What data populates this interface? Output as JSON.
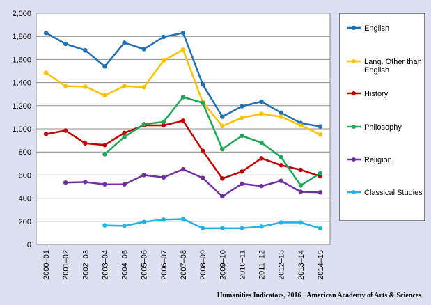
{
  "chart_data": {
    "type": "line",
    "categories": [
      "2000–01",
      "2001–02",
      "2002–03",
      "2003–04",
      "2004–05",
      "2005–06",
      "2006–07",
      "2007–08",
      "2008–09",
      "2009–10",
      "2010–11",
      "2011–12",
      "2012–13",
      "2013–14",
      "2014–15"
    ],
    "y_ticks": [
      "0",
      "200",
      "400",
      "600",
      "800",
      "1,000",
      "1,200",
      "1,400",
      "1,600",
      "1,800",
      "2,000"
    ],
    "ylim": [
      0,
      2000
    ],
    "grid": true,
    "legend_position": "right",
    "series": [
      {
        "name": "English",
        "color": "#1f6fb4",
        "values": [
          1830,
          1735,
          1680,
          1540,
          1745,
          1690,
          1795,
          1830,
          1385,
          1105,
          1195,
          1235,
          1140,
          1050,
          1020
        ]
      },
      {
        "name": "Lang. Other than English",
        "color": "#ffc000",
        "values": [
          1485,
          1370,
          1365,
          1290,
          1370,
          1360,
          1590,
          1685,
          1230,
          1025,
          1095,
          1130,
          1105,
          1030,
          950
        ]
      },
      {
        "name": "History",
        "color": "#c00000",
        "values": [
          955,
          985,
          875,
          860,
          965,
          1030,
          1030,
          1070,
          810,
          570,
          630,
          745,
          685,
          645,
          590
        ]
      },
      {
        "name": "Philosophy",
        "color": "#1da858",
        "values": [
          null,
          null,
          null,
          780,
          930,
          1040,
          1060,
          1275,
          1225,
          825,
          940,
          880,
          755,
          510,
          615
        ]
      },
      {
        "name": "Religion",
        "color": "#7030a0",
        "values": [
          null,
          535,
          540,
          520,
          520,
          600,
          580,
          650,
          575,
          415,
          525,
          505,
          550,
          455,
          450
        ]
      },
      {
        "name": "Classical Studies",
        "color": "#1fb4e8",
        "values": [
          null,
          null,
          null,
          165,
          160,
          195,
          215,
          220,
          140,
          140,
          140,
          155,
          190,
          190,
          140
        ]
      }
    ]
  },
  "footer": "Humanities Indicators, 2016 · American Academy of Arts & Sciences"
}
